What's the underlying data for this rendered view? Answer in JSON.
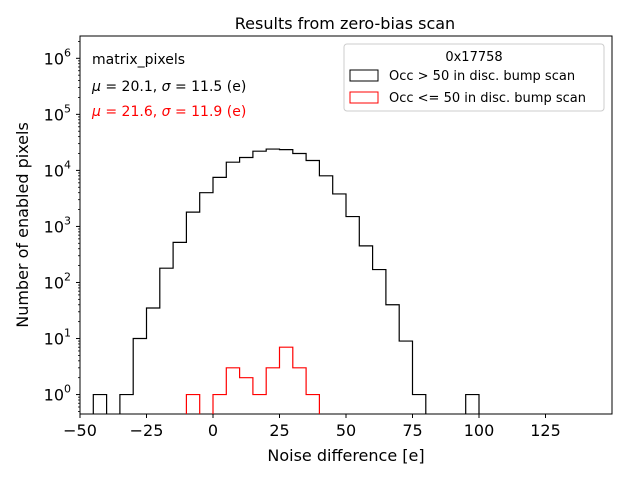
{
  "chart_data": {
    "type": "histogram",
    "title": "Results from zero-bias scan",
    "xlabel": "Noise difference [e]",
    "ylabel": "Number of enabled pixels",
    "xlim": [
      -50,
      150
    ],
    "ylim": [
      0.45,
      2500000
    ],
    "yscale": "log",
    "x_ticks": [
      -50,
      -25,
      0,
      25,
      50,
      75,
      100,
      125
    ],
    "x_tick_labels": [
      "−50",
      "−25",
      "0",
      "25",
      "50",
      "75",
      "100",
      "125"
    ],
    "y_ticks": [
      1,
      10,
      100,
      1000,
      10000,
      100000,
      1000000
    ],
    "y_tick_bases": [
      "10",
      "10",
      "10",
      "10",
      "10",
      "10",
      "10"
    ],
    "y_tick_exps": [
      "0",
      "1",
      "2",
      "3",
      "4",
      "5",
      "6"
    ],
    "grid": false,
    "legend": {
      "title": "0x17758",
      "location": "upper right"
    },
    "series": [
      {
        "name": "Occ > 50 in disc. bump scan",
        "color": "#000000",
        "bin_edges": [
          -45,
          -40,
          -35,
          -30,
          -25,
          -20,
          -15,
          -10,
          -5,
          0,
          5,
          10,
          15,
          20,
          25,
          30,
          35,
          40,
          45,
          50,
          55,
          60,
          65,
          70,
          75,
          80,
          85,
          90,
          95,
          100
        ],
        "counts": [
          1,
          0,
          1,
          10,
          35,
          180,
          520,
          1800,
          4000,
          7500,
          14000,
          17000,
          22000,
          24000,
          23500,
          20000,
          15000,
          8000,
          3800,
          1500,
          450,
          170,
          40,
          9,
          1,
          0,
          0,
          0,
          1
        ]
      },
      {
        "name": "Occ <= 50 in disc. bump scan",
        "color": "#ff0000",
        "bin_edges": [
          -10,
          -5,
          0,
          5,
          10,
          15,
          20,
          25,
          30,
          35,
          40
        ],
        "counts": [
          1,
          0,
          1,
          3,
          2,
          1,
          3,
          7,
          3,
          1
        ]
      }
    ],
    "annotations": [
      {
        "text": "matrix_pixels",
        "color": "#000000"
      },
      {
        "prefix": "μ",
        "mid": " = 20.1, ",
        "sigma": "σ",
        "suffix": " = 11.5 (e)",
        "color": "#000000"
      },
      {
        "prefix": "μ",
        "mid": " = 21.6, ",
        "sigma": "σ",
        "suffix": " = 11.9 (e)",
        "color": "#ff0000"
      }
    ]
  }
}
